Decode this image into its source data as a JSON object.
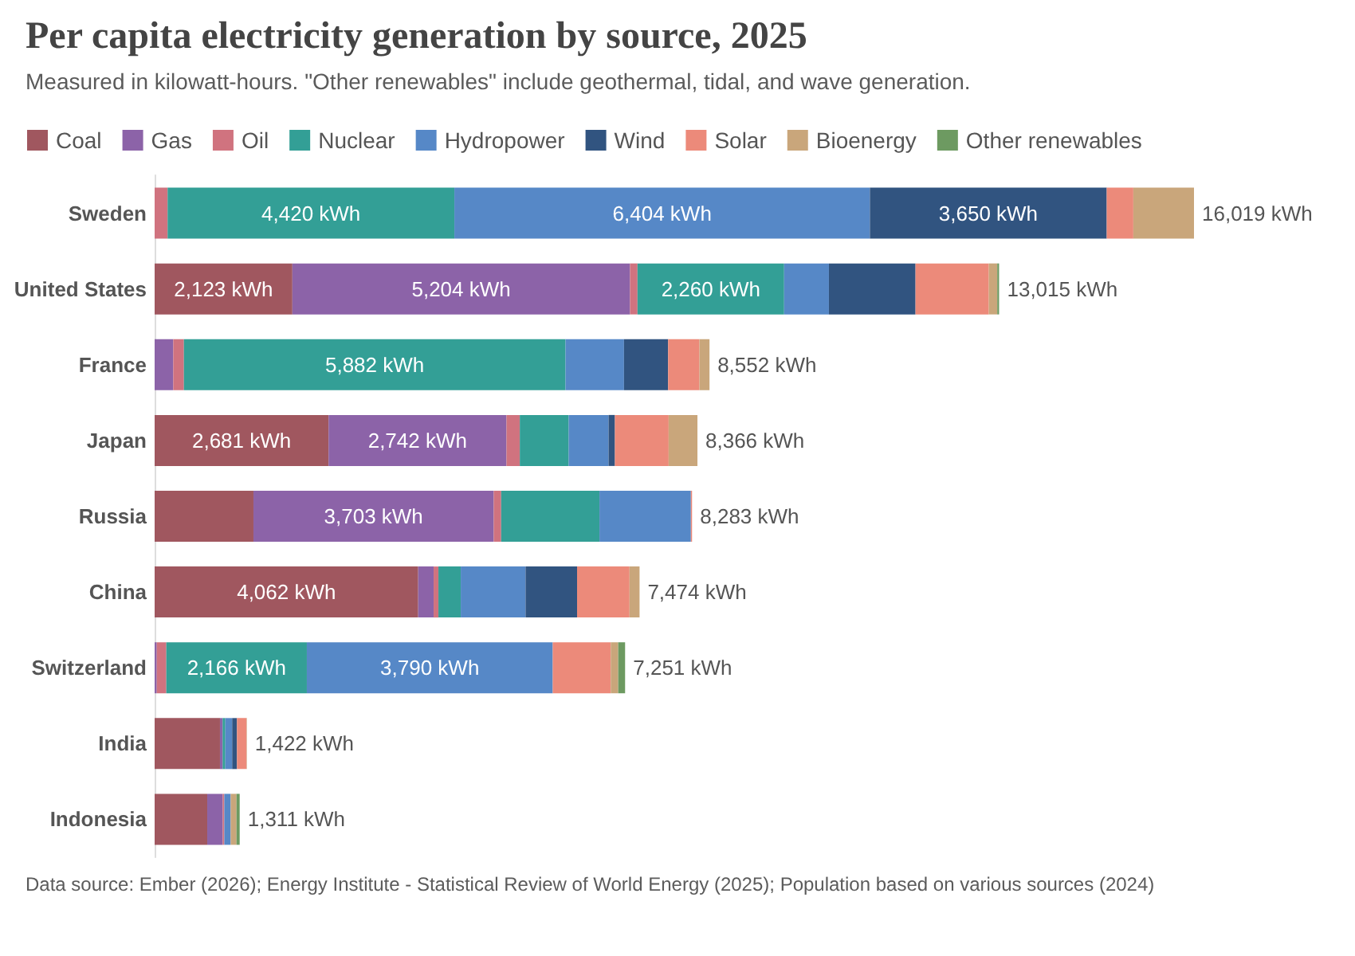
{
  "chart_data": {
    "type": "bar",
    "orientation": "horizontal",
    "stacked": true,
    "title": "Per capita electricity generation by source, 2025",
    "subtitle": "Measured in kilowatt-hours. \"Other renewables\" include geothermal, tidal, and wave generation.",
    "categories": [
      "Sweden",
      "United States",
      "France",
      "Japan",
      "Russia",
      "China",
      "Switzerland",
      "India",
      "Indonesia"
    ],
    "series": [
      {
        "name": "Coal",
        "color": "#a0575f",
        "values": [
          0,
          2123,
          0,
          2681,
          1523,
          4062,
          0,
          1007,
          811
        ],
        "value_labels": [
          null,
          "2,123 kWh",
          null,
          "2,681 kWh",
          null,
          "4,062 kWh",
          null,
          null,
          null
        ]
      },
      {
        "name": "Gas",
        "color": "#8c63a8",
        "values": [
          0,
          5204,
          287,
          2742,
          3703,
          238,
          33,
          41,
          238
        ],
        "value_labels": [
          null,
          "5,204 kWh",
          null,
          "2,742 kWh",
          "3,703 kWh",
          null,
          null,
          null,
          null
        ]
      },
      {
        "name": "Oil",
        "color": "#d0737f",
        "values": [
          200,
          115,
          164,
          205,
          115,
          74,
          147,
          0,
          25
        ]
      },
      {
        "name": "Nuclear",
        "color": "#339f96",
        "values": [
          4420,
          2260,
          5882,
          754,
          1515,
          344,
          2166,
          41,
          0
        ],
        "value_labels": [
          "4,420 kWh",
          "2,260 kWh",
          "5,882 kWh",
          null,
          null,
          null,
          "2,166 kWh",
          null,
          null
        ]
      },
      {
        "name": "Hydropower",
        "color": "#5688c7",
        "values": [
          6404,
          690,
          901,
          614,
          1409,
          999,
          3790,
          106,
          98
        ],
        "value_labels": [
          "6,404 kWh",
          null,
          null,
          null,
          null,
          null,
          "3,790 kWh",
          null,
          null
        ]
      },
      {
        "name": "Wind",
        "color": "#315480",
        "values": [
          3650,
          1335,
          680,
          98,
          0,
          794,
          0,
          74,
          0
        ],
        "value_labels": [
          "3,650 kWh",
          null,
          null,
          null,
          null,
          null,
          null,
          null,
          null
        ]
      },
      {
        "name": "Solar",
        "color": "#ec8a7a",
        "values": [
          410,
          1130,
          483,
          828,
          18,
          808,
          894,
          147,
          0
        ]
      },
      {
        "name": "Bioenergy",
        "color": "#c9a67b",
        "values": [
          935,
          130,
          155,
          444,
          0,
          155,
          115,
          6,
          90
        ]
      },
      {
        "name": "Other renewables",
        "color": "#6d9a61",
        "values": [
          0,
          28,
          0,
          0,
          0,
          0,
          106,
          0,
          49
        ]
      }
    ],
    "totals": [
      "16,019 kWh",
      "13,015 kWh",
      "8,552 kWh",
      "8,366 kWh",
      "8,283 kWh",
      "7,474 kWh",
      "7,251 kWh",
      "1,422 kWh",
      "1,311 kWh"
    ],
    "legend": "top left",
    "annotations": [
      "Data source: Ember (2026); Energy Institute - Statistical Review of World Energy (2025); Population based on various sources (2024)"
    ]
  }
}
